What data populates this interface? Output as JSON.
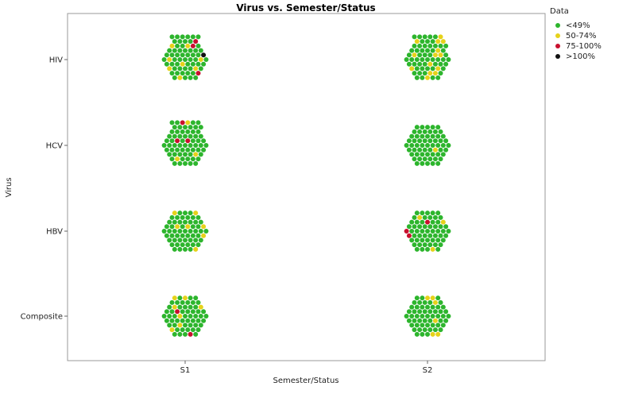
{
  "chart_data": {
    "type": "scatter",
    "subtype": "hexagonal-packed-dot-plot",
    "title": "Virus vs. Semester/Status",
    "xlabel": "Semester/Status",
    "ylabel": "Virus",
    "x_categories": [
      "S1",
      "S2"
    ],
    "y_categories": [
      "HIV",
      "HCV",
      "HBV",
      "Composite"
    ],
    "grid": false,
    "legend": {
      "title": "Data",
      "position": "top-right",
      "items": [
        {
          "label": "<49%",
          "color": "#2db52d"
        },
        {
          "label": "50-74%",
          "color": "#e6d21a"
        },
        {
          "label": "75-100%",
          "color": "#c8102e"
        },
        {
          "label": ">100%",
          "color": "#111111"
        }
      ]
    },
    "cells": [
      {
        "x": "S1",
        "y": "HIV",
        "counts": {
          "<49%": 55,
          "50-74%": 8,
          "75-100%": 3,
          ">100%": 1
        }
      },
      {
        "x": "S2",
        "y": "HIV",
        "counts": {
          "<49%": 55,
          "50-74%": 14,
          "75-100%": 0,
          ">100%": 0
        }
      },
      {
        "x": "S1",
        "y": "HCV",
        "counts": {
          "<49%": 62,
          "50-74%": 3,
          "75-100%": 3,
          ">100%": 0
        }
      },
      {
        "x": "S2",
        "y": "HCV",
        "counts": {
          "<49%": 60,
          "50-74%": 1,
          "75-100%": 0,
          ">100%": 0
        }
      },
      {
        "x": "S1",
        "y": "HBV",
        "counts": {
          "<49%": 54,
          "50-74%": 7,
          "75-100%": 0,
          ">100%": 0
        }
      },
      {
        "x": "S2",
        "y": "HBV",
        "counts": {
          "<49%": 55,
          "50-74%": 3,
          "75-100%": 3,
          ">100%": 0
        }
      },
      {
        "x": "S1",
        "y": "Composite",
        "counts": {
          "<49%": 52,
          "50-74%": 7,
          "75-100%": 2,
          ">100%": 0
        }
      },
      {
        "x": "S2",
        "y": "Composite",
        "counts": {
          "<49%": 55,
          "50-74%": 6,
          "75-100%": 0,
          ">100%": 0
        }
      }
    ]
  }
}
